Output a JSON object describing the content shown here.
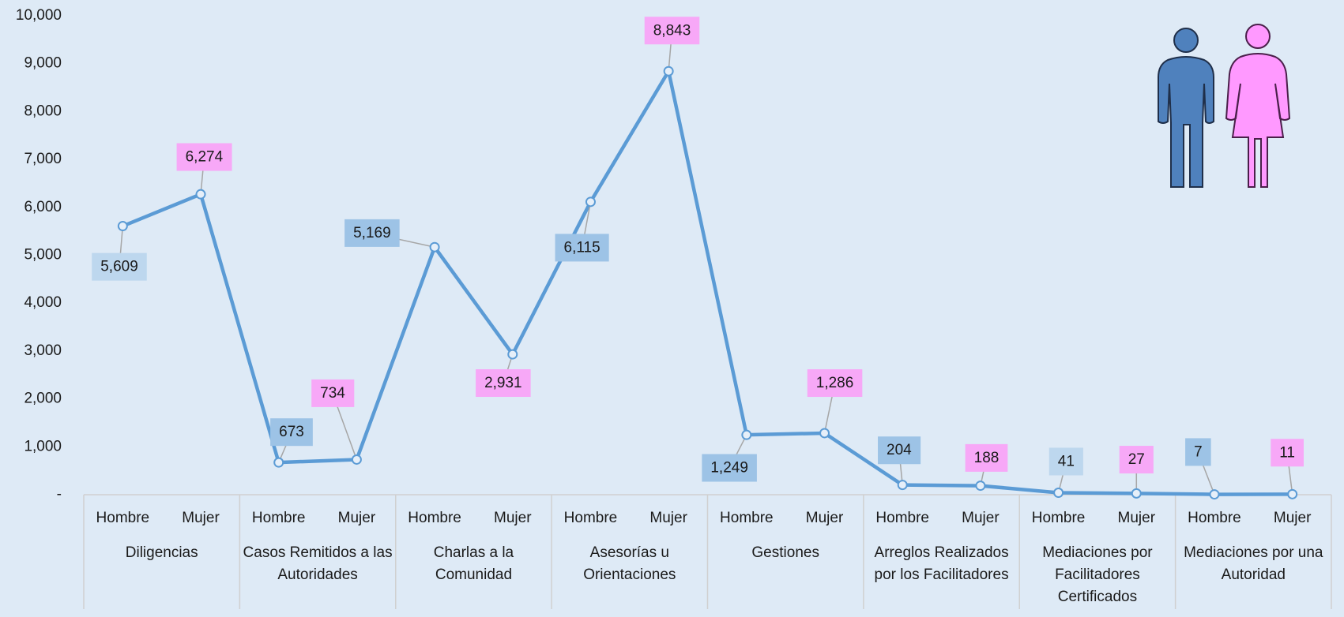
{
  "chart_data": {
    "type": "line",
    "categories": [
      "Hombre",
      "Mujer",
      "Hombre",
      "Mujer",
      "Hombre",
      "Mujer",
      "Hombre",
      "Mujer",
      "Hombre",
      "Mujer",
      "Hombre",
      "Mujer",
      "Hombre",
      "Mujer",
      "Hombre",
      "Mujer"
    ],
    "groups": [
      "Diligencias",
      "Casos Remitidos a las Autoridades",
      "Charlas a la Comunidad",
      "Asesorías u Orientaciones",
      "Gestiones",
      "Arreglos Realizados por los Facilitadores",
      "Mediaciones por Facilitadores Certificados",
      "Mediaciones por una Autoridad"
    ],
    "values": [
      5609,
      6274,
      673,
      734,
      5169,
      2931,
      6115,
      8843,
      1249,
      1286,
      204,
      188,
      41,
      27,
      7,
      11
    ],
    "value_labels": [
      "5,609",
      "6,274",
      "673",
      "734",
      "5,169",
      "2,931",
      "6,115",
      "8,843",
      "1,249",
      "1,286",
      "204",
      "188",
      "41",
      "27",
      "7",
      "11"
    ],
    "label_colors": [
      "#bdd7ee",
      "#f7a8f7",
      "#9dc3e6",
      "#f7a8f7",
      "#9dc3e6",
      "#f7a8f7",
      "#9dc3e6",
      "#f7a8f7",
      "#9dc3e6",
      "#f7a8f7",
      "#9dc3e6",
      "#f7a8f7",
      "#bdd7ee",
      "#f7a8f7",
      "#9dc3e6",
      "#f7a8f7"
    ],
    "color": "#5b9bd5",
    "ylim": [
      0,
      10000
    ],
    "yticks": [
      {
        "value": 0,
        "label": "-"
      },
      {
        "value": 1000,
        "label": "1,000"
      },
      {
        "value": 2000,
        "label": "2,000"
      },
      {
        "value": 3000,
        "label": "3,000"
      },
      {
        "value": 4000,
        "label": "4,000"
      },
      {
        "value": 5000,
        "label": "5,000"
      },
      {
        "value": 6000,
        "label": "6,000"
      },
      {
        "value": 7000,
        "label": "7,000"
      },
      {
        "value": 8000,
        "label": "8,000"
      },
      {
        "value": 9000,
        "label": "9,000"
      },
      {
        "value": 10000,
        "label": "10,000"
      }
    ]
  }
}
